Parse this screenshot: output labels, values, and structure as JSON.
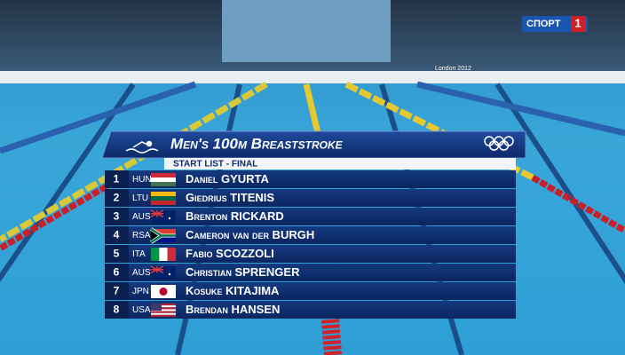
{
  "channel_logo": {
    "name": "СПОРТ",
    "number": "1"
  },
  "venue_sign": "London 2012",
  "graphic": {
    "title": "Men's 100m Breaststroke",
    "subtitle": "START LIST - FINAL",
    "rows": [
      {
        "lane": "1",
        "country": "HUN",
        "name": "Daniel GYURTA"
      },
      {
        "lane": "2",
        "country": "LTU",
        "name": "Giedrius TITENIS"
      },
      {
        "lane": "3",
        "country": "AUS",
        "name": "Brenton RICKARD"
      },
      {
        "lane": "4",
        "country": "RSA",
        "name": "Cameron van der BURGH"
      },
      {
        "lane": "5",
        "country": "ITA",
        "name": "Fabio SCOZZOLI"
      },
      {
        "lane": "6",
        "country": "AUS",
        "name": "Christian SPRENGER"
      },
      {
        "lane": "7",
        "country": "JPN",
        "name": "Kosuke KITAJIMA"
      },
      {
        "lane": "8",
        "country": "USA",
        "name": "Brendan HANSEN"
      }
    ]
  }
}
